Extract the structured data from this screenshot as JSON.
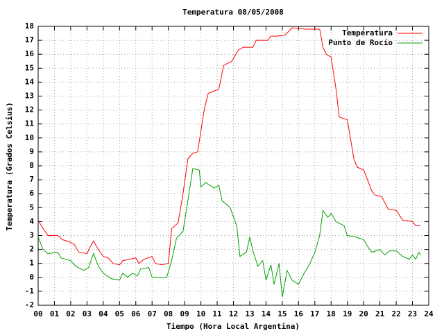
{
  "chart_data": {
    "type": "line",
    "title": "Temperatura 08/05/2008",
    "x_label": "Tiempo (Hora Local Argentina)",
    "y_label": "Temperatura (Grados Celsius)",
    "xlim": [
      0,
      24
    ],
    "ylim": [
      -2,
      18
    ],
    "xticks": [
      {
        "value": 0,
        "label": "00"
      },
      {
        "value": 1,
        "label": "01"
      },
      {
        "value": 2,
        "label": "02"
      },
      {
        "value": 3,
        "label": "03"
      },
      {
        "value": 4,
        "label": "04"
      },
      {
        "value": 5,
        "label": "05"
      },
      {
        "value": 6,
        "label": "06"
      },
      {
        "value": 7,
        "label": "07"
      },
      {
        "value": 8,
        "label": "08"
      },
      {
        "value": 9,
        "label": "09"
      },
      10,
      11,
      12,
      13,
      14,
      15,
      16,
      17,
      18,
      19,
      20,
      21,
      22,
      23,
      24
    ],
    "yticks": [
      -2,
      -1,
      0,
      1,
      2,
      3,
      4,
      5,
      6,
      7,
      8,
      9,
      10,
      11,
      12,
      13,
      14,
      15,
      16,
      17,
      18
    ],
    "grid": true,
    "legend": "top right",
    "series": [
      {
        "name": "Temperatura",
        "color": "#ff0000",
        "x": [
          0,
          0.3,
          0.6,
          1.2,
          1.5,
          1.8,
          2.2,
          2.5,
          3.0,
          3.2,
          3.4,
          3.7,
          4.0,
          4.3,
          4.6,
          5.0,
          5.2,
          5.6,
          6.0,
          6.2,
          6.5,
          7.0,
          7.2,
          7.6,
          8.0,
          8.2,
          8.6,
          8.9,
          9.2,
          9.5,
          9.8,
          10.2,
          10.45,
          11.1,
          11.4,
          11.9,
          12.3,
          12.6,
          13.2,
          13.4,
          14.1,
          14.3,
          14.7,
          15.2,
          15.6,
          16.4,
          17.3,
          17.5,
          17.7,
          18.0,
          18.3,
          18.5,
          19.0,
          19.4,
          19.6,
          20.0,
          20.5,
          20.7,
          21.1,
          21.5,
          22.0,
          22.4,
          23.0,
          23.2,
          23.5
        ],
        "values": [
          4.1,
          3.5,
          3.0,
          3.0,
          2.7,
          2.6,
          2.4,
          1.8,
          1.7,
          2.2,
          2.6,
          2.0,
          1.5,
          1.4,
          1.0,
          0.9,
          1.2,
          1.3,
          1.4,
          1.0,
          1.3,
          1.5,
          1.0,
          0.9,
          1.0,
          3.5,
          3.9,
          6.0,
          8.5,
          8.9,
          9.0,
          12.0,
          13.2,
          13.5,
          15.2,
          15.5,
          16.3,
          16.5,
          16.5,
          17.0,
          17.0,
          17.3,
          17.3,
          17.4,
          17.9,
          17.8,
          17.8,
          16.5,
          16.0,
          15.8,
          13.5,
          11.5,
          11.3,
          8.5,
          7.9,
          7.7,
          6.2,
          5.9,
          5.8,
          4.9,
          4.8,
          4.1,
          4.0,
          3.7,
          3.7
        ]
      },
      {
        "name": "Punto de Rocío",
        "color": "#00a000",
        "x": [
          0,
          0.3,
          0.6,
          1.2,
          1.4,
          2.0,
          2.3,
          2.8,
          3.1,
          3.4,
          3.7,
          4.0,
          4.5,
          5.0,
          5.2,
          5.5,
          5.8,
          6.1,
          6.3,
          6.8,
          7.0,
          7.6,
          7.9,
          8.2,
          8.5,
          8.9,
          9.2,
          9.5,
          9.9,
          10.0,
          10.3,
          10.8,
          11.1,
          11.3,
          11.8,
          12.2,
          12.4,
          12.8,
          13.0,
          13.2,
          13.5,
          13.8,
          14.0,
          14.3,
          14.5,
          14.8,
          15.0,
          15.3,
          15.6,
          16.0,
          16.3,
          16.7,
          17.0,
          17.3,
          17.5,
          17.8,
          18.0,
          18.3,
          18.8,
          19.0,
          19.5,
          20.0,
          20.2,
          20.5,
          21.0,
          21.3,
          21.6,
          22.0,
          22.4,
          22.8,
          23.0,
          23.2,
          23.4,
          23.5
        ],
        "values": [
          2.9,
          2.0,
          1.7,
          1.8,
          1.4,
          1.2,
          0.8,
          0.5,
          0.7,
          1.7,
          0.8,
          0.3,
          -0.1,
          -0.2,
          0.3,
          0.0,
          0.3,
          0.1,
          0.6,
          0.7,
          0.0,
          0.0,
          0.0,
          1.2,
          2.8,
          3.3,
          5.5,
          7.8,
          7.7,
          6.5,
          6.8,
          6.4,
          6.6,
          5.5,
          5.0,
          3.7,
          1.5,
          1.8,
          2.9,
          1.9,
          0.8,
          1.2,
          -0.2,
          0.9,
          -0.5,
          1.0,
          -1.4,
          0.5,
          -0.2,
          -0.5,
          0.2,
          1.0,
          1.8,
          3.0,
          4.8,
          4.3,
          4.6,
          4.0,
          3.7,
          3.0,
          2.9,
          2.7,
          2.3,
          1.8,
          2.0,
          1.6,
          1.9,
          1.9,
          1.5,
          1.3,
          1.6,
          1.3,
          1.8,
          1.6
        ]
      }
    ]
  }
}
